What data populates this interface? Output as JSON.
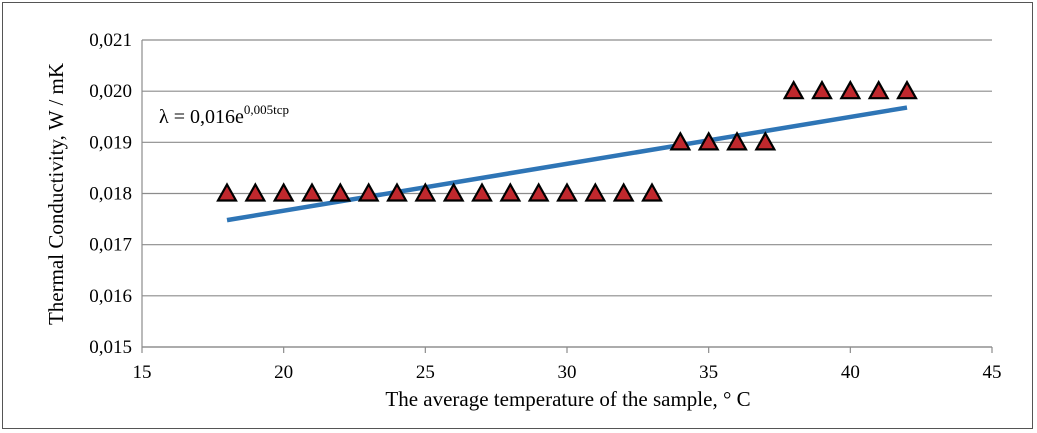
{
  "chart_data": {
    "type": "scatter",
    "title": "",
    "xlabel": "The average temperature of the sample, ° C",
    "ylabel": "Thermal Conductivity, W / mK",
    "xlim": [
      15,
      45
    ],
    "ylim": [
      0.015,
      0.021
    ],
    "x_ticks": [
      15,
      20,
      25,
      30,
      35,
      40,
      45
    ],
    "x_tick_labels": [
      "15",
      "20",
      "25",
      "30",
      "35",
      "40",
      "45"
    ],
    "y_ticks": [
      0.015,
      0.016,
      0.017,
      0.018,
      0.019,
      0.02,
      0.021
    ],
    "y_tick_labels": [
      "0,015",
      "0,016",
      "0,017",
      "0,018",
      "0,019",
      "0,020",
      "0,021"
    ],
    "grid": "horizontal",
    "series": [
      {
        "marker": "triangle",
        "color": "#c0282d",
        "x": [
          18,
          19,
          20,
          21,
          22,
          23,
          24,
          25,
          26,
          27,
          28,
          29,
          30,
          31,
          32,
          33,
          34,
          35,
          36,
          37,
          38,
          39,
          40,
          41,
          42
        ],
        "values": [
          0.018,
          0.018,
          0.018,
          0.018,
          0.018,
          0.018,
          0.018,
          0.018,
          0.018,
          0.018,
          0.018,
          0.018,
          0.018,
          0.018,
          0.018,
          0.018,
          0.019,
          0.019,
          0.019,
          0.019,
          0.02,
          0.02,
          0.02,
          0.02,
          0.02
        ]
      }
    ],
    "trendline": {
      "type": "exponential",
      "color": "#2e75b6",
      "x": [
        18,
        42
      ],
      "values": [
        0.01748,
        0.01968
      ],
      "equation": {
        "base": "λ = 0,016e",
        "exponent": "0,005tср"
      }
    }
  }
}
